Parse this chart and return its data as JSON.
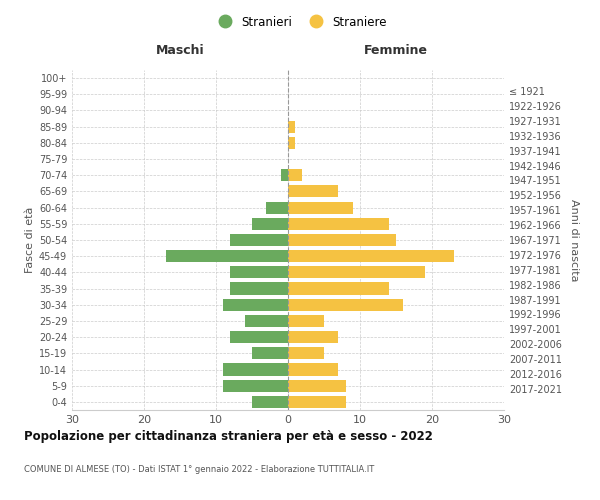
{
  "age_groups": [
    "100+",
    "95-99",
    "90-94",
    "85-89",
    "80-84",
    "75-79",
    "70-74",
    "65-69",
    "60-64",
    "55-59",
    "50-54",
    "45-49",
    "40-44",
    "35-39",
    "30-34",
    "25-29",
    "20-24",
    "15-19",
    "10-14",
    "5-9",
    "0-4"
  ],
  "birth_years": [
    "≤ 1921",
    "1922-1926",
    "1927-1931",
    "1932-1936",
    "1937-1941",
    "1942-1946",
    "1947-1951",
    "1952-1956",
    "1957-1961",
    "1962-1966",
    "1967-1971",
    "1972-1976",
    "1977-1981",
    "1982-1986",
    "1987-1991",
    "1992-1996",
    "1997-2001",
    "2002-2006",
    "2007-2011",
    "2012-2016",
    "2017-2021"
  ],
  "maschi": [
    0,
    0,
    0,
    0,
    0,
    0,
    1,
    0,
    3,
    5,
    8,
    17,
    8,
    8,
    9,
    6,
    8,
    5,
    9,
    9,
    5
  ],
  "femmine": [
    0,
    0,
    0,
    1,
    1,
    0,
    2,
    7,
    9,
    14,
    15,
    23,
    19,
    14,
    16,
    5,
    7,
    5,
    7,
    8,
    8
  ],
  "maschi_color": "#6aaa5e",
  "femmine_color": "#f5c242",
  "background_color": "#ffffff",
  "grid_color": "#cccccc",
  "title": "Popolazione per cittadinanza straniera per età e sesso - 2022",
  "subtitle": "COMUNE DI ALMESE (TO) - Dati ISTAT 1° gennaio 2022 - Elaborazione TUTTITALIA.IT",
  "xlabel_left": "Maschi",
  "xlabel_right": "Femmine",
  "ylabel_left": "Fasce di età",
  "ylabel_right": "Anni di nascita",
  "legend_maschi": "Stranieri",
  "legend_femmine": "Straniere",
  "xlim": 30,
  "bar_height": 0.75
}
